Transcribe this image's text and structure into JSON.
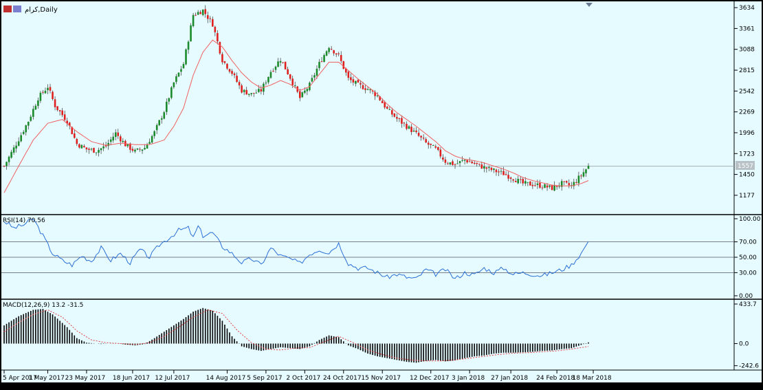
{
  "window": {
    "symbol_label": "كرام,Daily",
    "current_price": "1557",
    "colors": {
      "background": "#e6fbff",
      "frame": "#000000",
      "bull": "#1a8a2a",
      "bear": "#e01f1f",
      "ma_line": "#f06060",
      "rsi_line": "#2a6fd6",
      "macd_hist": "#000000",
      "macd_signal": "#e04040",
      "price_line": "#9aa6a8"
    }
  },
  "chart_data": [
    {
      "type": "candlestick",
      "panel": "price",
      "y_ticks": [
        "3634",
        "3361",
        "3088",
        "2815",
        "2542",
        "2269",
        "1996",
        "1723",
        "1450",
        "1177"
      ],
      "ylim": [
        1050,
        3680
      ],
      "x_ticks": [
        "5 Apr 2017",
        "1 May 2017",
        "23 May 2017",
        "18 Jun 2017",
        "12 Jul 2017",
        "14 Aug 2017",
        "5 Sep 2017",
        "2 Oct 2017",
        "24 Oct 2017",
        "15 Nov 2017",
        "12 Dec 2017",
        "3 Jan 2018",
        "27 Jan 2018",
        "24 Feb 2018",
        "18 Mar 2018"
      ],
      "close_path": [
        [
          0,
          1560
        ],
        [
          5,
          1850
        ],
        [
          10,
          2150
        ],
        [
          14,
          2450
        ],
        [
          18,
          2600
        ],
        [
          21,
          2350
        ],
        [
          26,
          2150
        ],
        [
          30,
          1850
        ],
        [
          34,
          1780
        ],
        [
          38,
          1760
        ],
        [
          42,
          1820
        ],
        [
          46,
          1990
        ],
        [
          50,
          1840
        ],
        [
          54,
          1750
        ],
        [
          58,
          1800
        ],
        [
          62,
          2000
        ],
        [
          66,
          2280
        ],
        [
          70,
          2650
        ],
        [
          74,
          2900
        ],
        [
          78,
          3540
        ],
        [
          82,
          3600
        ],
        [
          86,
          3420
        ],
        [
          90,
          2950
        ],
        [
          94,
          2780
        ],
        [
          98,
          2550
        ],
        [
          102,
          2500
        ],
        [
          106,
          2550
        ],
        [
          110,
          2800
        ],
        [
          114,
          2960
        ],
        [
          118,
          2720
        ],
        [
          122,
          2450
        ],
        [
          126,
          2620
        ],
        [
          130,
          2900
        ],
        [
          134,
          3130
        ],
        [
          138,
          3000
        ],
        [
          142,
          2700
        ],
        [
          146,
          2620
        ],
        [
          150,
          2570
        ],
        [
          154,
          2480
        ],
        [
          158,
          2300
        ],
        [
          162,
          2180
        ],
        [
          166,
          2080
        ],
        [
          170,
          1980
        ],
        [
          174,
          1860
        ],
        [
          178,
          1780
        ],
        [
          182,
          1620
        ],
        [
          186,
          1580
        ],
        [
          190,
          1640
        ],
        [
          194,
          1590
        ],
        [
          198,
          1540
        ],
        [
          202,
          1500
        ],
        [
          206,
          1460
        ],
        [
          210,
          1400
        ],
        [
          214,
          1330
        ],
        [
          218,
          1320
        ],
        [
          222,
          1300
        ],
        [
          226,
          1270
        ],
        [
          230,
          1330
        ],
        [
          234,
          1300
        ],
        [
          238,
          1440
        ],
        [
          241,
          1557
        ]
      ],
      "ma_path": [
        [
          0,
          1210
        ],
        [
          6,
          1560
        ],
        [
          12,
          1900
        ],
        [
          18,
          2120
        ],
        [
          24,
          2170
        ],
        [
          30,
          2010
        ],
        [
          36,
          1880
        ],
        [
          42,
          1830
        ],
        [
          48,
          1860
        ],
        [
          54,
          1840
        ],
        [
          60,
          1840
        ],
        [
          66,
          1900
        ],
        [
          70,
          2080
        ],
        [
          74,
          2320
        ],
        [
          78,
          2750
        ],
        [
          82,
          3050
        ],
        [
          86,
          3210
        ],
        [
          90,
          3120
        ],
        [
          94,
          2940
        ],
        [
          98,
          2780
        ],
        [
          102,
          2660
        ],
        [
          106,
          2580
        ],
        [
          110,
          2620
        ],
        [
          114,
          2680
        ],
        [
          118,
          2630
        ],
        [
          122,
          2550
        ],
        [
          126,
          2600
        ],
        [
          130,
          2760
        ],
        [
          134,
          2920
        ],
        [
          138,
          2920
        ],
        [
          142,
          2810
        ],
        [
          146,
          2700
        ],
        [
          150,
          2600
        ],
        [
          154,
          2500
        ],
        [
          158,
          2370
        ],
        [
          162,
          2260
        ],
        [
          166,
          2170
        ],
        [
          170,
          2080
        ],
        [
          174,
          1980
        ],
        [
          178,
          1880
        ],
        [
          182,
          1760
        ],
        [
          186,
          1690
        ],
        [
          190,
          1650
        ],
        [
          194,
          1630
        ],
        [
          198,
          1600
        ],
        [
          202,
          1560
        ],
        [
          206,
          1520
        ],
        [
          210,
          1470
        ],
        [
          214,
          1410
        ],
        [
          218,
          1370
        ],
        [
          222,
          1340
        ],
        [
          226,
          1310
        ],
        [
          230,
          1300
        ],
        [
          234,
          1300
        ],
        [
          238,
          1330
        ],
        [
          241,
          1370
        ]
      ]
    },
    {
      "type": "line",
      "panel": "rsi",
      "label": "RSI(14) 70.56",
      "y_ticks": [
        "100.00",
        "70.00",
        "50.00",
        "30.00",
        "0.00"
      ],
      "levels": [
        70,
        50,
        30
      ],
      "ylim": [
        0,
        100
      ],
      "path": [
        [
          0,
          97
        ],
        [
          4,
          88
        ],
        [
          8,
          92
        ],
        [
          12,
          100
        ],
        [
          16,
          78
        ],
        [
          20,
          55
        ],
        [
          24,
          46
        ],
        [
          28,
          40
        ],
        [
          32,
          52
        ],
        [
          36,
          45
        ],
        [
          40,
          62
        ],
        [
          44,
          46
        ],
        [
          48,
          55
        ],
        [
          52,
          43
        ],
        [
          56,
          60
        ],
        [
          60,
          50
        ],
        [
          64,
          66
        ],
        [
          68,
          75
        ],
        [
          72,
          85
        ],
        [
          76,
          88
        ],
        [
          78,
          75
        ],
        [
          80,
          90
        ],
        [
          82,
          78
        ],
        [
          86,
          82
        ],
        [
          90,
          64
        ],
        [
          94,
          55
        ],
        [
          98,
          43
        ],
        [
          102,
          48
        ],
        [
          106,
          40
        ],
        [
          110,
          62
        ],
        [
          114,
          52
        ],
        [
          118,
          48
        ],
        [
          122,
          42
        ],
        [
          126,
          54
        ],
        [
          130,
          60
        ],
        [
          134,
          56
        ],
        [
          138,
          68
        ],
        [
          142,
          42
        ],
        [
          146,
          36
        ],
        [
          150,
          36
        ],
        [
          154,
          30
        ],
        [
          158,
          24
        ],
        [
          162,
          28
        ],
        [
          166,
          24
        ],
        [
          170,
          22
        ],
        [
          174,
          34
        ],
        [
          178,
          28
        ],
        [
          182,
          34
        ],
        [
          186,
          22
        ],
        [
          190,
          30
        ],
        [
          194,
          27
        ],
        [
          198,
          36
        ],
        [
          202,
          30
        ],
        [
          206,
          36
        ],
        [
          210,
          28
        ],
        [
          214,
          30
        ],
        [
          218,
          28
        ],
        [
          222,
          26
        ],
        [
          226,
          30
        ],
        [
          230,
          34
        ],
        [
          234,
          40
        ],
        [
          238,
          55
        ],
        [
          241,
          70.56
        ]
      ]
    },
    {
      "type": "bar",
      "panel": "macd",
      "label": "MACD(12,26,9) 13.2 -31.5",
      "y_ticks": [
        "433.7",
        "0.0",
        "-242.6"
      ],
      "ylim": [
        -260,
        433.7
      ],
      "hist_path": [
        [
          0,
          200
        ],
        [
          6,
          300
        ],
        [
          12,
          370
        ],
        [
          16,
          380
        ],
        [
          20,
          320
        ],
        [
          26,
          180
        ],
        [
          30,
          60
        ],
        [
          34,
          10
        ],
        [
          40,
          -5
        ],
        [
          46,
          5
        ],
        [
          50,
          -10
        ],
        [
          54,
          -20
        ],
        [
          58,
          -5
        ],
        [
          62,
          60
        ],
        [
          66,
          130
        ],
        [
          70,
          200
        ],
        [
          74,
          270
        ],
        [
          78,
          350
        ],
        [
          82,
          390
        ],
        [
          86,
          360
        ],
        [
          90,
          250
        ],
        [
          94,
          80
        ],
        [
          98,
          -30
        ],
        [
          102,
          -60
        ],
        [
          106,
          -80
        ],
        [
          110,
          -60
        ],
        [
          114,
          -40
        ],
        [
          118,
          -50
        ],
        [
          122,
          -60
        ],
        [
          126,
          -30
        ],
        [
          130,
          40
        ],
        [
          134,
          90
        ],
        [
          138,
          70
        ],
        [
          142,
          -20
        ],
        [
          146,
          -60
        ],
        [
          150,
          -110
        ],
        [
          154,
          -140
        ],
        [
          158,
          -160
        ],
        [
          162,
          -180
        ],
        [
          166,
          -200
        ],
        [
          170,
          -210
        ],
        [
          174,
          -190
        ],
        [
          178,
          -180
        ],
        [
          182,
          -195
        ],
        [
          186,
          -185
        ],
        [
          190,
          -160
        ],
        [
          194,
          -140
        ],
        [
          198,
          -130
        ],
        [
          202,
          -110
        ],
        [
          206,
          -100
        ],
        [
          210,
          -100
        ],
        [
          214,
          -95
        ],
        [
          218,
          -90
        ],
        [
          222,
          -80
        ],
        [
          226,
          -75
        ],
        [
          230,
          -60
        ],
        [
          234,
          -50
        ],
        [
          238,
          -15
        ],
        [
          241,
          13.2
        ]
      ],
      "signal_path": [
        [
          0,
          130
        ],
        [
          6,
          230
        ],
        [
          12,
          320
        ],
        [
          18,
          370
        ],
        [
          24,
          290
        ],
        [
          30,
          140
        ],
        [
          36,
          40
        ],
        [
          42,
          10
        ],
        [
          48,
          0
        ],
        [
          54,
          -10
        ],
        [
          60,
          10
        ],
        [
          66,
          80
        ],
        [
          72,
          180
        ],
        [
          78,
          290
        ],
        [
          84,
          370
        ],
        [
          90,
          330
        ],
        [
          96,
          150
        ],
        [
          102,
          10
        ],
        [
          108,
          -60
        ],
        [
          114,
          -70
        ],
        [
          120,
          -50
        ],
        [
          126,
          -45
        ],
        [
          132,
          20
        ],
        [
          138,
          80
        ],
        [
          144,
          10
        ],
        [
          150,
          -70
        ],
        [
          156,
          -120
        ],
        [
          162,
          -160
        ],
        [
          168,
          -180
        ],
        [
          174,
          -190
        ],
        [
          180,
          -190
        ],
        [
          186,
          -180
        ],
        [
          192,
          -160
        ],
        [
          198,
          -140
        ],
        [
          204,
          -120
        ],
        [
          210,
          -105
        ],
        [
          216,
          -100
        ],
        [
          222,
          -90
        ],
        [
          228,
          -80
        ],
        [
          234,
          -60
        ],
        [
          241,
          -31.5
        ]
      ]
    }
  ]
}
